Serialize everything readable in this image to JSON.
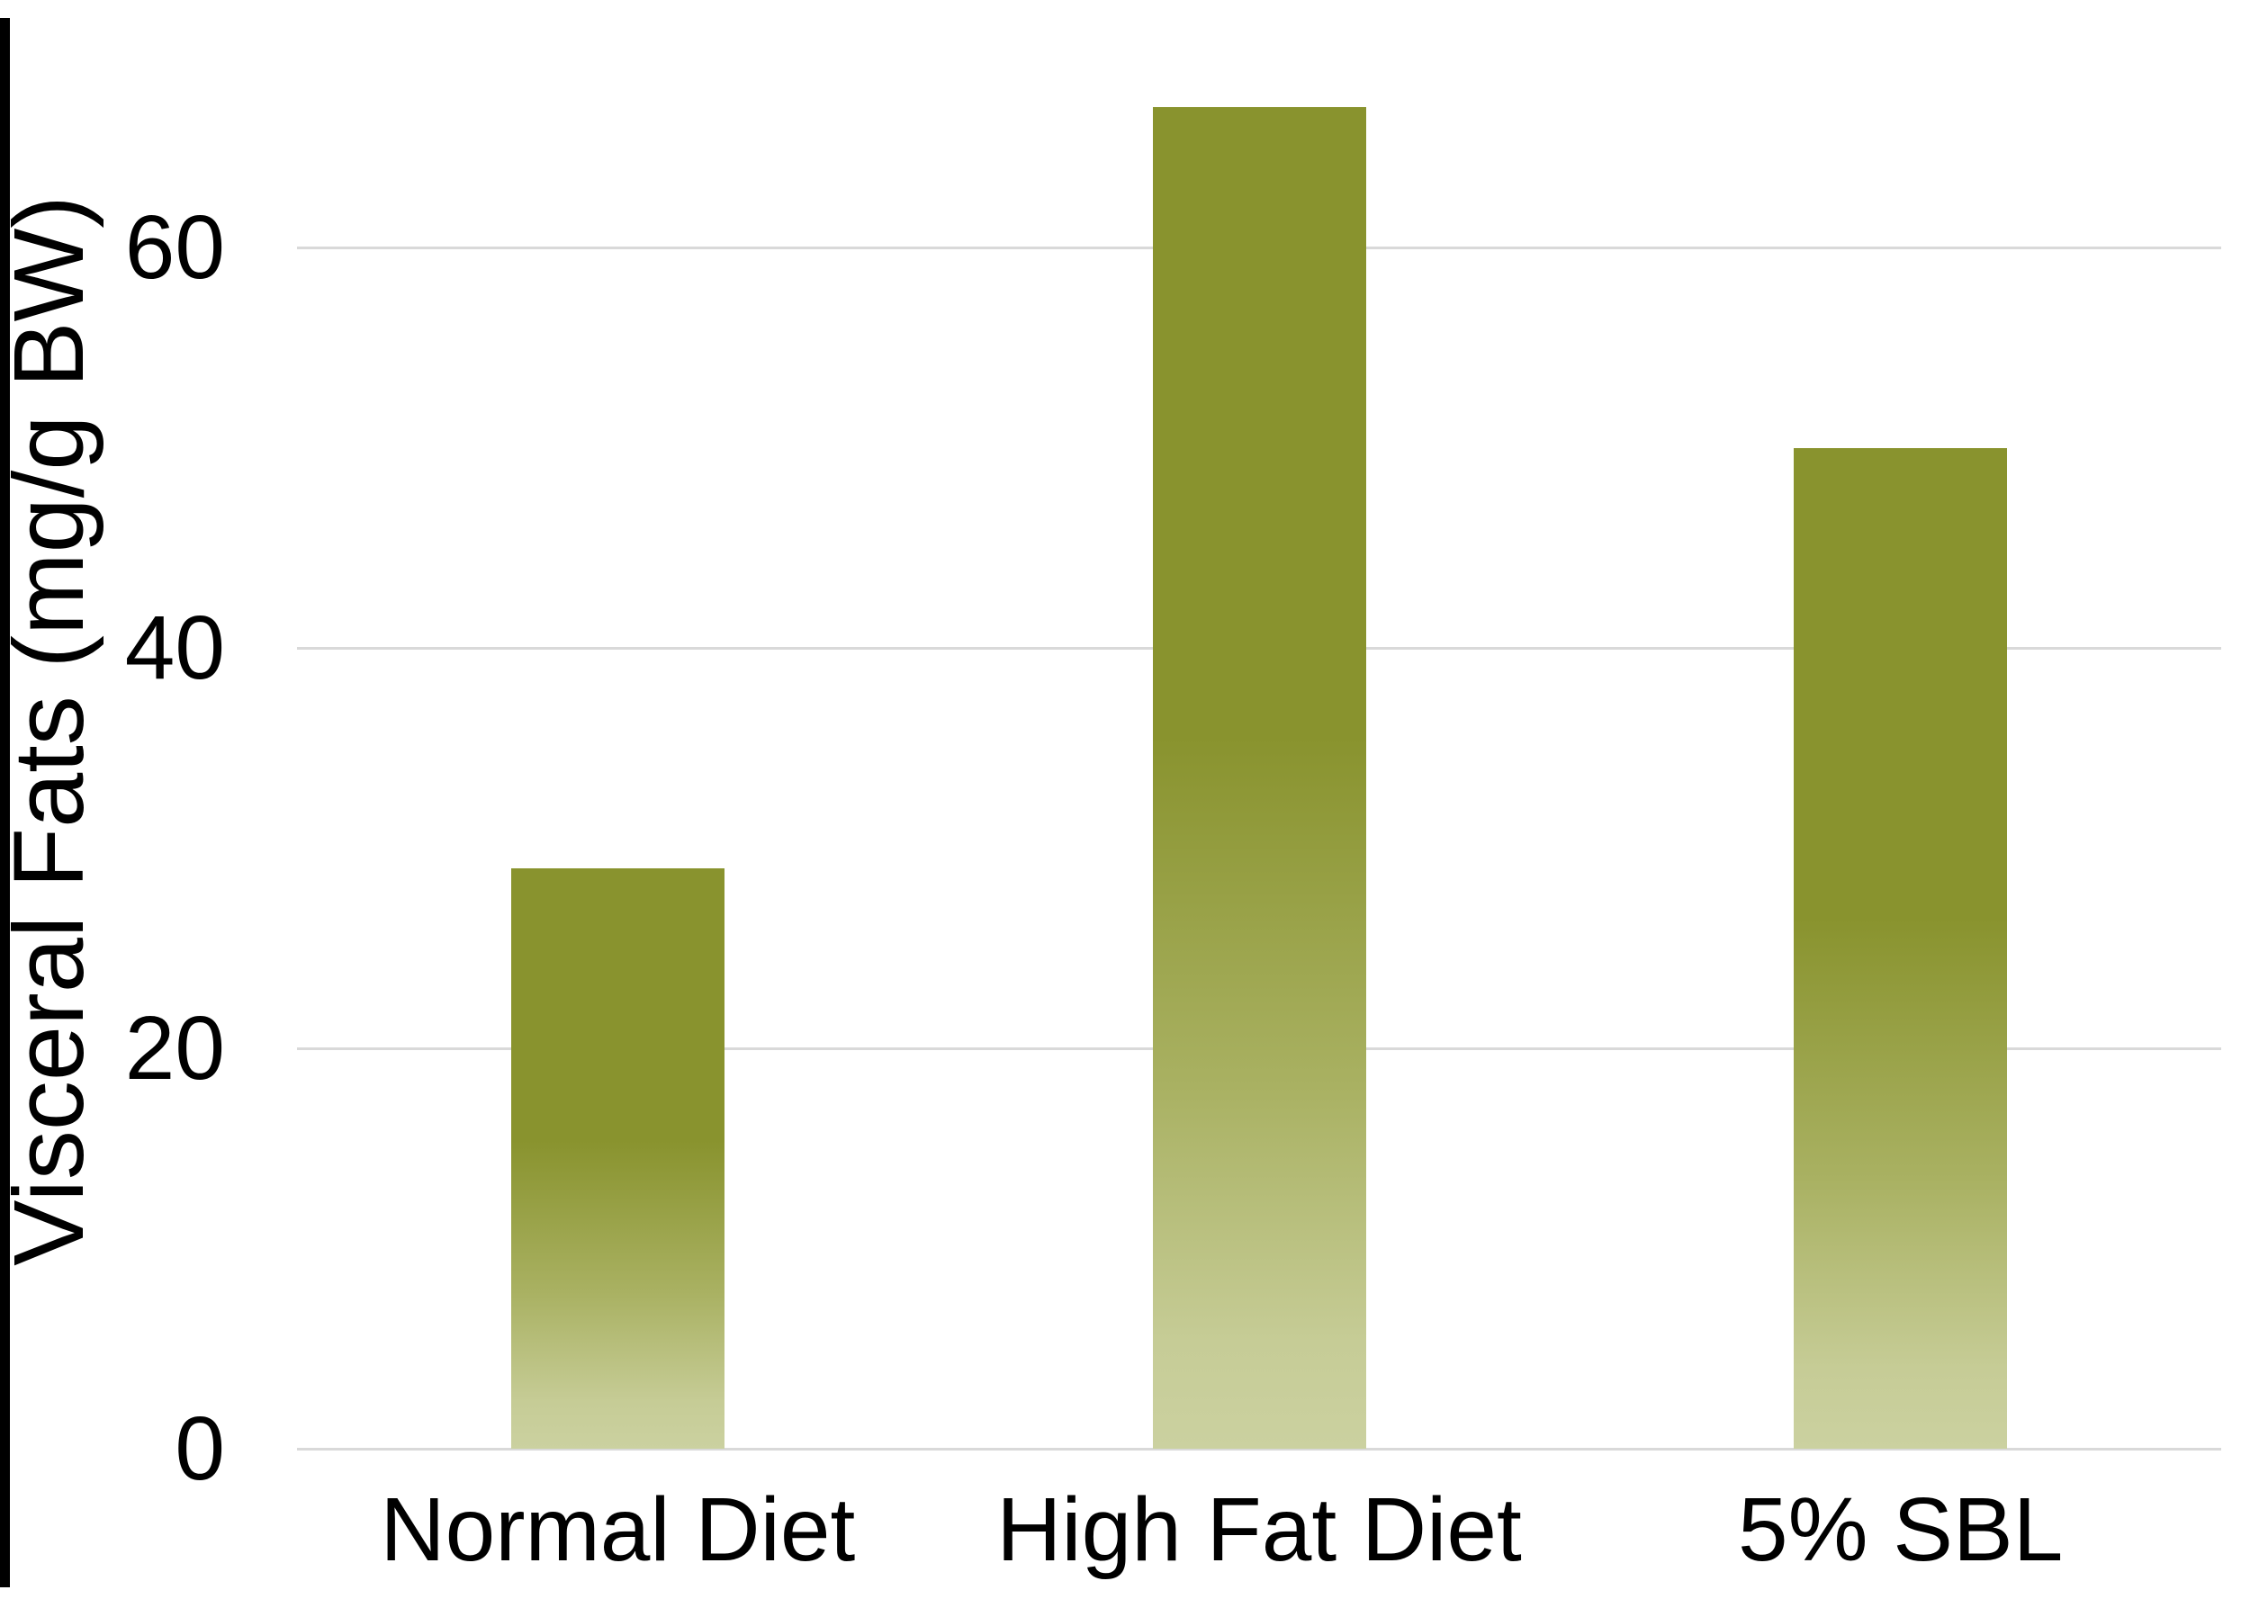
{
  "chart_data": {
    "type": "bar",
    "categories": [
      "Normal Diet",
      "High Fat Diet",
      "5% SBL"
    ],
    "values": [
      29,
      67,
      50
    ],
    "title": "",
    "xlabel": "",
    "ylabel": "Visceral Fats (mg/g BW)",
    "yticks": [
      0,
      20,
      40,
      60
    ],
    "ylim": [
      0,
      72
    ],
    "grid": "horizontal gridlines at each y tick",
    "legend_position": "none",
    "colors": {
      "bar_gradient_top": "#89932E",
      "bar_gradient_bottom": "#CBD1A0",
      "gridline": "#D9D9D9",
      "text": "#000000",
      "background": "#FFFFFF",
      "left_border": "#000000"
    }
  }
}
